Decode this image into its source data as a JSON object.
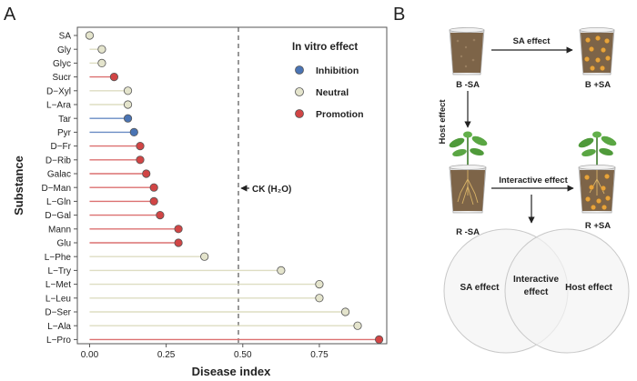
{
  "panel_a": {
    "letter": "A",
    "chart_data": {
      "type": "lollipop",
      "xlabel": "Disease index",
      "ylabel": "Substance",
      "xlim": [
        -0.04,
        0.97
      ],
      "xticks": [
        0.0,
        0.25,
        0.5,
        0.75
      ],
      "xtick_labels": [
        "0.00",
        "0.25",
        "0.50",
        "0.75"
      ],
      "reference_line": {
        "x": 0.5,
        "label": "CK (H₂O)"
      },
      "legend": {
        "title": "In vitro effect",
        "position": "top-right",
        "entries": [
          {
            "name": "Inhibition",
            "color": "#4a74b4"
          },
          {
            "name": "Neutral",
            "color": "#e4e4cc"
          },
          {
            "name": "Promotion",
            "color": "#d14545"
          }
        ]
      },
      "points": [
        {
          "substance": "SA",
          "value": 0.0,
          "effect": "Neutral"
        },
        {
          "substance": "Gly",
          "value": 0.04,
          "effect": "Neutral"
        },
        {
          "substance": "Glyc",
          "value": 0.04,
          "effect": "Neutral"
        },
        {
          "substance": "Sucr",
          "value": 0.08,
          "effect": "Promotion"
        },
        {
          "substance": "D−Xyl",
          "value": 0.125,
          "effect": "Neutral"
        },
        {
          "substance": "L−Ara",
          "value": 0.125,
          "effect": "Neutral"
        },
        {
          "substance": "Tar",
          "value": 0.125,
          "effect": "Inhibition"
        },
        {
          "substance": "Pyr",
          "value": 0.145,
          "effect": "Inhibition"
        },
        {
          "substance": "D−Fr",
          "value": 0.165,
          "effect": "Promotion"
        },
        {
          "substance": "D−Rib",
          "value": 0.165,
          "effect": "Promotion"
        },
        {
          "substance": "Galac",
          "value": 0.185,
          "effect": "Promotion"
        },
        {
          "substance": "D−Man",
          "value": 0.21,
          "effect": "Promotion"
        },
        {
          "substance": "L−Gln",
          "value": 0.21,
          "effect": "Promotion"
        },
        {
          "substance": "D−Gal",
          "value": 0.23,
          "effect": "Promotion"
        },
        {
          "substance": "Mann",
          "value": 0.29,
          "effect": "Promotion"
        },
        {
          "substance": "Glu",
          "value": 0.29,
          "effect": "Promotion"
        },
        {
          "substance": "L−Phe",
          "value": 0.375,
          "effect": "Neutral"
        },
        {
          "substance": "L−Try",
          "value": 0.625,
          "effect": "Neutral"
        },
        {
          "substance": "L−Met",
          "value": 0.75,
          "effect": "Neutral"
        },
        {
          "substance": "L−Leu",
          "value": 0.75,
          "effect": "Neutral"
        },
        {
          "substance": "D−Ser",
          "value": 0.835,
          "effect": "Neutral"
        },
        {
          "substance": "L−Ala",
          "value": 0.875,
          "effect": "Neutral"
        },
        {
          "substance": "L−Pro",
          "value": 0.945,
          "effect": "Promotion"
        }
      ]
    }
  },
  "panel_b": {
    "letter": "B",
    "labels": {
      "b_sa": "B -SA",
      "b_plus_sa": "B +SA",
      "r_sa": "R -SA",
      "r_plus_sa": "R +SA",
      "sa_effect_arrow": "SA effect",
      "host_effect_arrow": "Host effect",
      "interactive_effect_arrow": "Interactive effect"
    },
    "venn": {
      "left": "SA effect",
      "middle_line1": "Interactive",
      "middle_line2": "effect",
      "right": "Host effect"
    },
    "colors": {
      "soil": "#7d6448",
      "cup": "#eeeeee",
      "sa_bead": "#e7a43c",
      "leaf": "#4f9a3a",
      "root": "#d7b267"
    }
  }
}
